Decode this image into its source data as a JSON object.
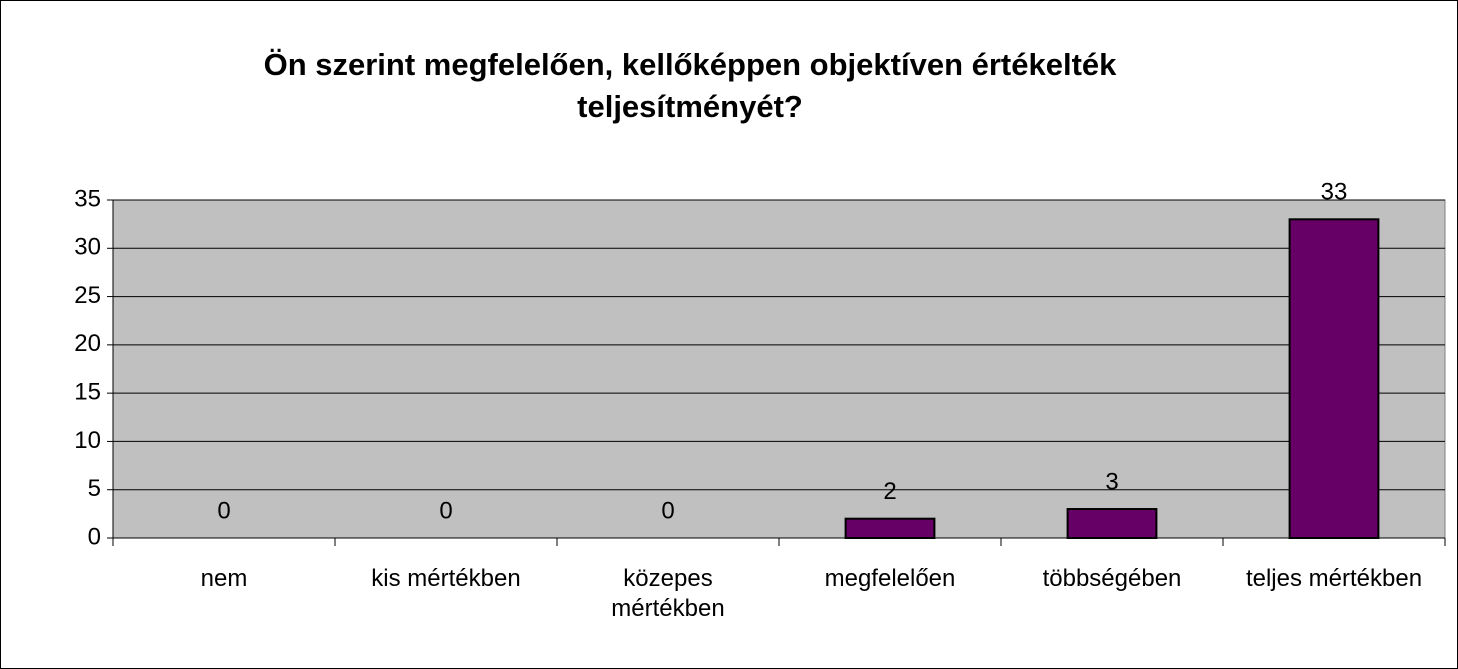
{
  "chart_data": {
    "type": "bar",
    "title": "Ön szerint megfelelően, kellőképpen objektíven értékelték teljesítményét?",
    "categories": [
      "nem",
      "kis mértékben",
      "közepes mértékben",
      "megfelelően",
      "többségében",
      "teljes mértékben"
    ],
    "values": [
      0,
      0,
      0,
      2,
      3,
      33
    ],
    "color": "#660066",
    "ylim": [
      0,
      35
    ],
    "yticks": [
      0,
      5,
      10,
      15,
      20,
      25,
      30,
      35
    ],
    "grid": true
  }
}
